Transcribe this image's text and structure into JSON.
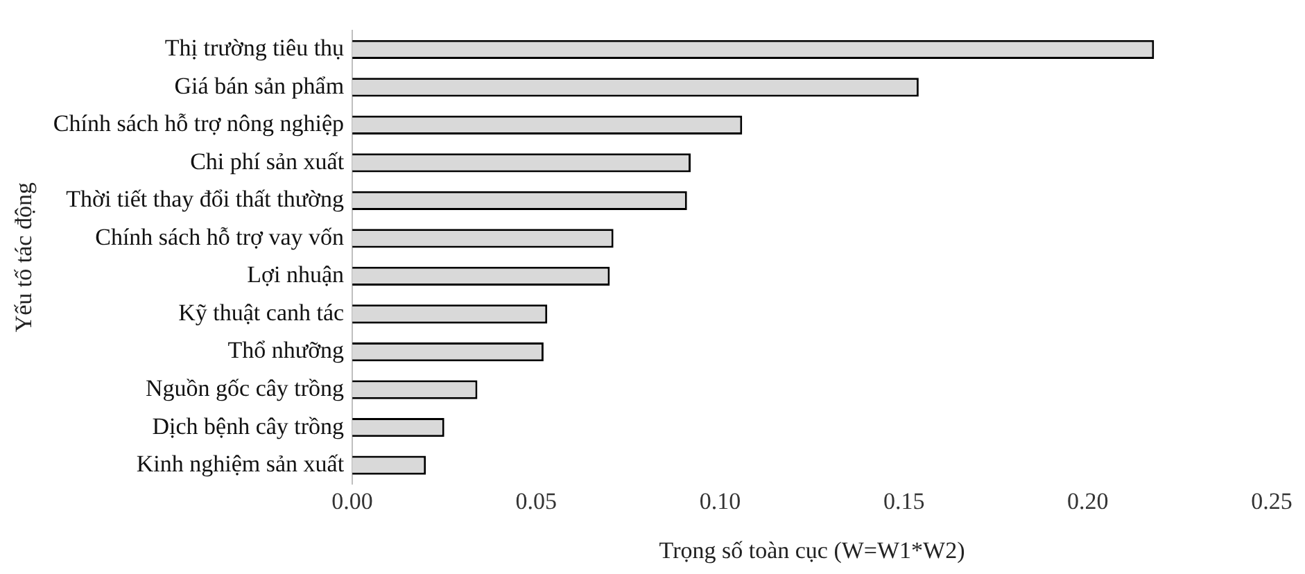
{
  "chart_data": {
    "type": "bar",
    "orientation": "horizontal",
    "xlabel": "Trọng số toàn cục (W=W1*W2)",
    "ylabel": "Yếu tố tác động",
    "categories": [
      "Thị trường tiêu thụ",
      "Giá bán sản phẩm",
      "Chính sách hỗ trợ nông nghiệp",
      "Chi phí sản xuất",
      "Thời tiết thay đổi thất thường",
      "Chính sách hỗ trợ vay vốn",
      "Lợi nhuận",
      "Kỹ thuật canh tác",
      "Thổ nhưỡng",
      "Nguồn gốc cây trồng",
      "Dịch bệnh cây trồng",
      "Kinh nghiệm sản xuất"
    ],
    "values": [
      0.218,
      0.154,
      0.106,
      0.092,
      0.091,
      0.071,
      0.07,
      0.053,
      0.052,
      0.034,
      0.025,
      0.02
    ],
    "color": "#d9d9d9",
    "xlim": [
      0,
      0.25
    ],
    "xticks": [
      {
        "value": 0,
        "label": "0.00"
      },
      {
        "value": 0.05,
        "label": "0.05"
      },
      {
        "value": 0.1,
        "label": "0.10"
      },
      {
        "value": 0.15,
        "label": "0.15"
      },
      {
        "value": 0.2,
        "label": "0.20"
      },
      {
        "value": 0.25,
        "label": "0.25"
      }
    ],
    "grid": false,
    "legend": false
  }
}
